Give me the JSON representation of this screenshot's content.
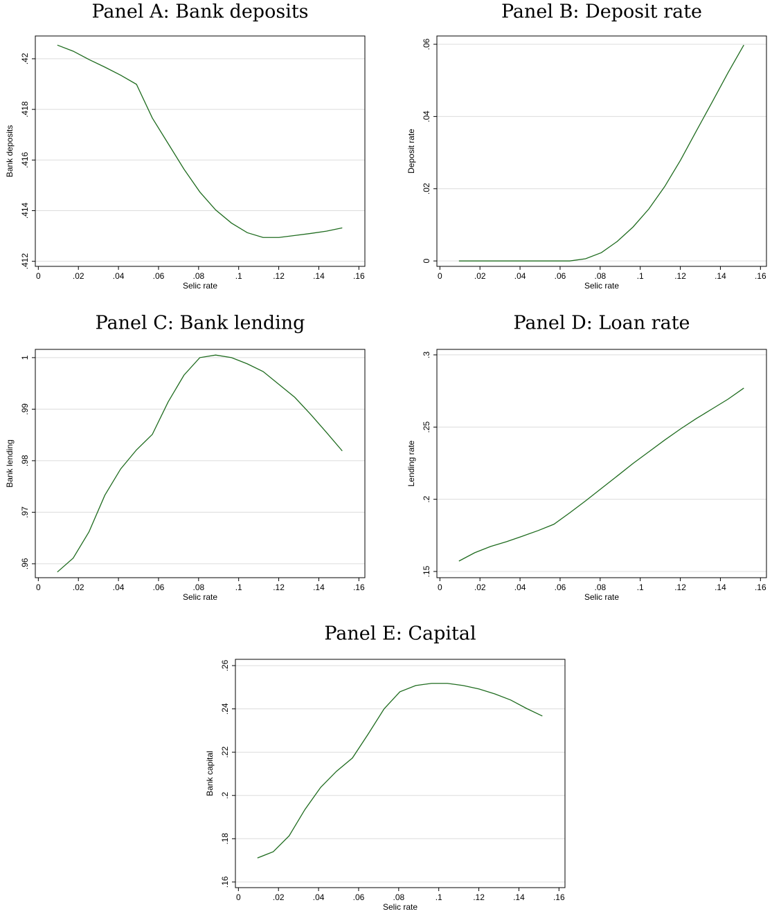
{
  "chart_data": [
    {
      "type": "line",
      "title": "Panel A: Bank deposits",
      "xlabel": "Selic rate",
      "ylabel": "Bank deposits",
      "x": [
        0.0095,
        0.0174,
        0.0253,
        0.0332,
        0.0411,
        0.049,
        0.0569,
        0.0648,
        0.0727,
        0.0806,
        0.0885,
        0.0964,
        0.1043,
        0.1122,
        0.1201,
        0.128,
        0.1359,
        0.1438,
        0.1517
      ],
      "series": [
        {
          "name": "Bank deposits",
          "color": "#1e6b1e",
          "values": [
            0.42054,
            0.4203,
            0.41997,
            0.41967,
            0.41935,
            0.41899,
            0.41766,
            0.41665,
            0.41564,
            0.41474,
            0.41403,
            0.41351,
            0.41313,
            0.41294,
            0.41294,
            0.41302,
            0.4131,
            0.41319,
            0.41332
          ]
        }
      ],
      "xlim": [
        -0.0015,
        0.163
      ],
      "xticks": [
        0,
        {
          "value": 0.02,
          "label": ".02"
        },
        {
          "value": 0.04,
          "label": ".04"
        },
        {
          "value": 0.06,
          "label": ".06"
        },
        {
          "value": 0.08,
          "label": ".08"
        },
        {
          "value": 0.1,
          "label": ".1"
        },
        {
          "value": 0.12,
          "label": ".12"
        },
        {
          "value": 0.14,
          "label": ".14"
        },
        {
          "value": 0.16,
          "label": ".16"
        }
      ],
      "ylim": [
        0.4118,
        0.4209
      ],
      "yticks": [
        {
          "value": 0.412,
          "label": ".412"
        },
        {
          "value": 0.414,
          "label": ".414"
        },
        {
          "value": 0.416,
          "label": ".416"
        },
        {
          "value": 0.418,
          "label": ".418"
        },
        {
          "value": 0.42,
          "label": ".42"
        }
      ],
      "grid": true
    },
    {
      "type": "line",
      "title": "Panel B: Deposit rate",
      "xlabel": "Selic rate",
      "ylabel": "Deposit rate",
      "x": [
        0.0095,
        0.0174,
        0.0253,
        0.0332,
        0.0411,
        0.049,
        0.0569,
        0.0648,
        0.0727,
        0.0806,
        0.0885,
        0.0964,
        0.1043,
        0.1122,
        0.1201,
        0.128,
        0.1359,
        0.1438,
        0.1517
      ],
      "series": [
        {
          "name": "Deposit rate",
          "color": "#1e6b1e",
          "values": [
            0,
            0,
            0,
            0,
            0,
            0,
            0,
            0,
            0.0006,
            0.0023,
            0.0054,
            0.0094,
            0.0144,
            0.0206,
            0.0279,
            0.036,
            0.044,
            0.0521,
            0.0598
          ]
        }
      ],
      "xlim": [
        -0.0015,
        0.163
      ],
      "xticks": [
        0,
        {
          "value": 0.02,
          "label": ".02"
        },
        {
          "value": 0.04,
          "label": ".04"
        },
        {
          "value": 0.06,
          "label": ".06"
        },
        {
          "value": 0.08,
          "label": ".08"
        },
        {
          "value": 0.1,
          "label": ".1"
        },
        {
          "value": 0.12,
          "label": ".12"
        },
        {
          "value": 0.14,
          "label": ".14"
        },
        {
          "value": 0.16,
          "label": ".16"
        }
      ],
      "ylim": [
        -0.0015,
        0.0623
      ],
      "yticks": [
        0,
        {
          "value": 0.02,
          "label": ".02"
        },
        {
          "value": 0.04,
          "label": ".04"
        },
        {
          "value": 0.06,
          "label": ".06"
        }
      ],
      "grid": true
    },
    {
      "type": "line",
      "title": "Panel C: Bank lending",
      "xlabel": "Selic rate",
      "ylabel": "Bank lending",
      "x": [
        0.0095,
        0.0174,
        0.0253,
        0.0332,
        0.0411,
        0.049,
        0.0569,
        0.0648,
        0.0727,
        0.0806,
        0.0885,
        0.0964,
        0.1043,
        0.1122,
        0.1201,
        0.128,
        0.1359,
        0.1438,
        0.1517
      ],
      "series": [
        {
          "name": "Bank lending",
          "color": "#1e6b1e",
          "values": [
            0.9584,
            0.9611,
            0.9662,
            0.9733,
            0.9784,
            0.9821,
            0.9851,
            0.9914,
            0.9966,
            1.0,
            1.0005,
            1.0,
            0.9988,
            0.9973,
            0.9948,
            0.9923,
            0.989,
            0.9855,
            0.9819
          ]
        }
      ],
      "xlim": [
        -0.0015,
        0.163
      ],
      "xticks": [
        0,
        {
          "value": 0.02,
          "label": ".02"
        },
        {
          "value": 0.04,
          "label": ".04"
        },
        {
          "value": 0.06,
          "label": ".06"
        },
        {
          "value": 0.08,
          "label": ".08"
        },
        {
          "value": 0.1,
          "label": ".1"
        },
        {
          "value": 0.12,
          "label": ".12"
        },
        {
          "value": 0.14,
          "label": ".14"
        },
        {
          "value": 0.16,
          "label": ".16"
        }
      ],
      "ylim": [
        0.9573,
        1.0016
      ],
      "yticks": [
        {
          "value": 0.96,
          "label": ".96"
        },
        {
          "value": 0.97,
          "label": ".97"
        },
        {
          "value": 0.98,
          "label": ".98"
        },
        {
          "value": 0.99,
          "label": ".99"
        },
        1
      ],
      "grid": true
    },
    {
      "type": "line",
      "title": "Panel D: Loan rate",
      "xlabel": "Selic rate",
      "ylabel": "Lending rate",
      "x": [
        0.0095,
        0.0174,
        0.0253,
        0.0332,
        0.0411,
        0.049,
        0.0569,
        0.0648,
        0.0727,
        0.0806,
        0.0885,
        0.0964,
        0.1043,
        0.1122,
        0.1201,
        0.128,
        0.1359,
        0.1438,
        0.1517
      ],
      "series": [
        {
          "name": "Lending rate",
          "color": "#1e6b1e",
          "values": [
            0.1572,
            0.163,
            0.1673,
            0.1706,
            0.1744,
            0.1783,
            0.1827,
            0.1906,
            0.1989,
            0.2075,
            0.2161,
            0.2248,
            0.2329,
            0.241,
            0.2487,
            0.2559,
            0.2626,
            0.2693,
            0.277
          ]
        }
      ],
      "xlim": [
        -0.0015,
        0.163
      ],
      "xticks": [
        0,
        {
          "value": 0.02,
          "label": ".02"
        },
        {
          "value": 0.04,
          "label": ".04"
        },
        {
          "value": 0.06,
          "label": ".06"
        },
        {
          "value": 0.08,
          "label": ".08"
        },
        {
          "value": 0.1,
          "label": ".1"
        },
        {
          "value": 0.12,
          "label": ".12"
        },
        {
          "value": 0.14,
          "label": ".14"
        },
        {
          "value": 0.16,
          "label": ".16"
        }
      ],
      "ylim": [
        0.1457,
        0.3038
      ],
      "yticks": [
        {
          "value": 0.15,
          "label": ".15"
        },
        {
          "value": 0.2,
          "label": ".2"
        },
        {
          "value": 0.25,
          "label": ".25"
        },
        {
          "value": 0.3,
          "label": ".3"
        }
      ],
      "grid": true
    },
    {
      "type": "line",
      "title": "Panel E: Capital",
      "xlabel": "Selic rate",
      "ylabel": "Bank capital",
      "x": [
        0.0095,
        0.0174,
        0.0253,
        0.0332,
        0.0411,
        0.049,
        0.0569,
        0.0648,
        0.0727,
        0.0806,
        0.0885,
        0.0964,
        0.1043,
        0.1122,
        0.1201,
        0.128,
        0.1359,
        0.1438,
        0.1517
      ],
      "series": [
        {
          "name": "Bank capital",
          "color": "#1e6b1e",
          "values": [
            0.1711,
            0.174,
            0.1813,
            0.1935,
            0.2038,
            0.2112,
            0.2173,
            0.2284,
            0.24,
            0.2479,
            0.2508,
            0.2518,
            0.2518,
            0.2508,
            0.2492,
            0.2469,
            0.2441,
            0.2402,
            0.2367
          ]
        }
      ],
      "xlim": [
        -0.0015,
        0.163
      ],
      "xticks": [
        0,
        {
          "value": 0.02,
          "label": ".02"
        },
        {
          "value": 0.04,
          "label": ".04"
        },
        {
          "value": 0.06,
          "label": ".06"
        },
        {
          "value": 0.08,
          "label": ".08"
        },
        {
          "value": 0.1,
          "label": ".1"
        },
        {
          "value": 0.12,
          "label": ".12"
        },
        {
          "value": 0.14,
          "label": ".14"
        },
        {
          "value": 0.16,
          "label": ".16"
        }
      ],
      "ylim": [
        0.1574,
        0.2629
      ],
      "yticks": [
        {
          "value": 0.16,
          "label": ".16"
        },
        {
          "value": 0.18,
          "label": ".18"
        },
        {
          "value": 0.2,
          "label": ".2"
        },
        {
          "value": 0.22,
          "label": ".22"
        },
        {
          "value": 0.24,
          "label": ".24"
        },
        {
          "value": 0.26,
          "label": ".26"
        }
      ],
      "grid": true
    }
  ]
}
